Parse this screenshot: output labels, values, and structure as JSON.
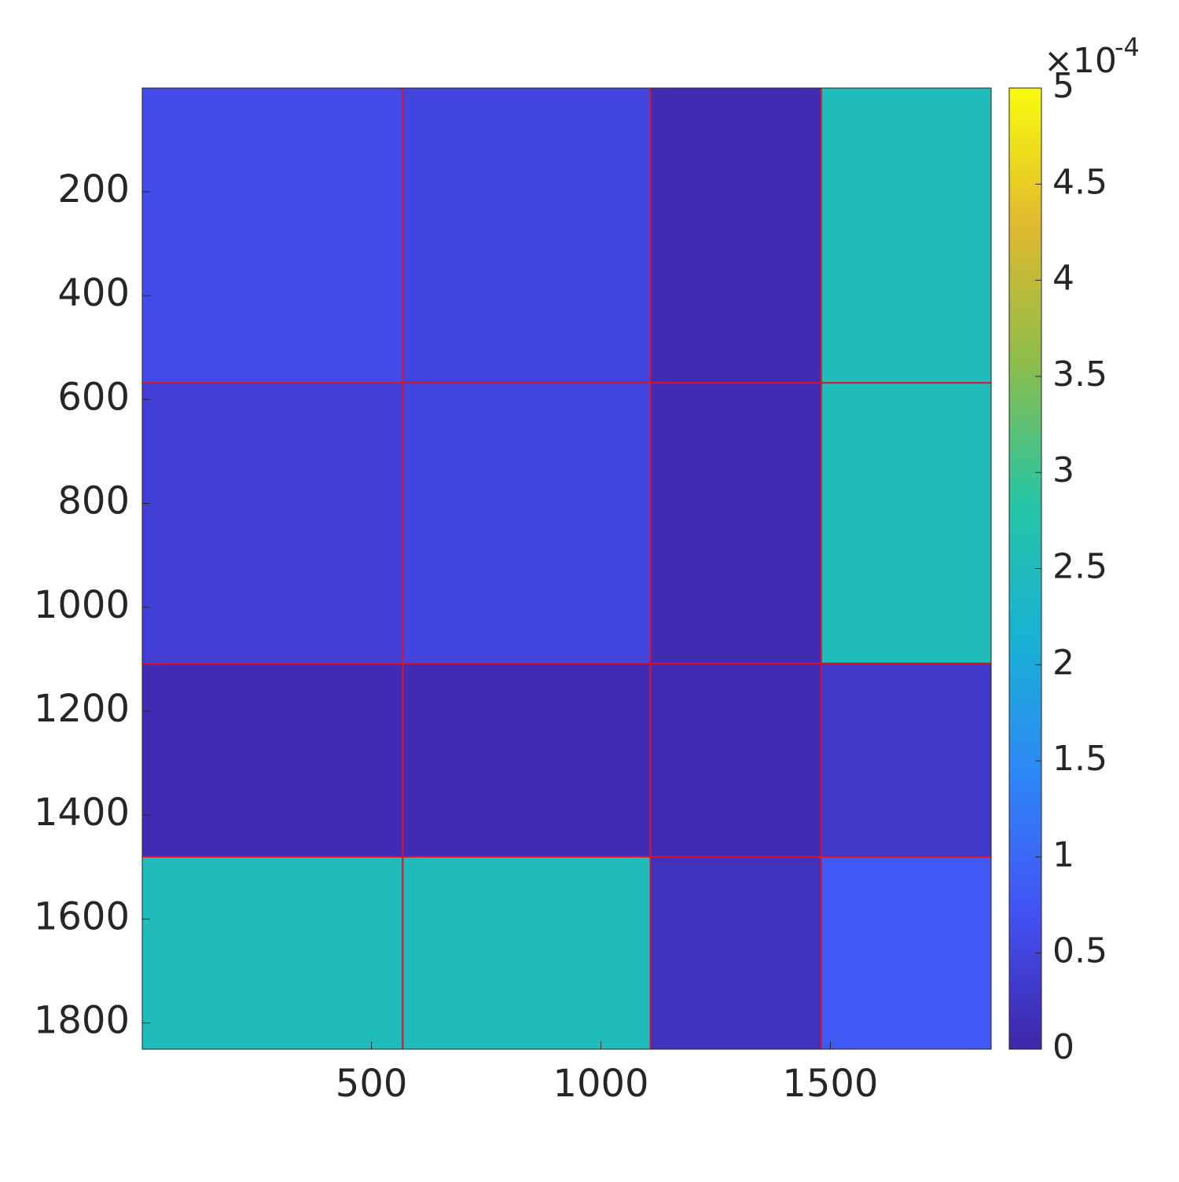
{
  "chart_data": {
    "type": "heatmap",
    "x_edges": [
      0.5,
      568,
      1108,
      1480,
      1850.5
    ],
    "y_edges": [
      0.5,
      568,
      1108,
      1480,
      1850.5
    ],
    "values": [
      [
        0.6,
        0.5,
        0.1,
        2.5
      ],
      [
        0.4,
        0.5,
        0.1,
        2.5
      ],
      [
        0.1,
        0.1,
        0.1,
        0.3
      ],
      [
        2.5,
        2.5,
        0.2,
        0.8
      ]
    ],
    "xlim": [
      0.5,
      1850.5
    ],
    "ylim": [
      0.5,
      1850.5
    ],
    "xticks": [
      500,
      1000,
      1500
    ],
    "yticks": [
      200,
      400,
      600,
      800,
      1000,
      1200,
      1400,
      1600,
      1800
    ],
    "y_reversed": true,
    "block_line_color": "#e0102a",
    "colormap": [
      "#3e26a8",
      "#4352f4",
      "#2e87f7",
      "#19b2d3",
      "#27c5a3",
      "#8dbd4b",
      "#e0b92f",
      "#f9fb0e"
    ],
    "clim": [
      0,
      5
    ],
    "cticks": [
      0,
      0.5,
      1,
      1.5,
      2,
      2.5,
      3,
      3.5,
      4,
      4.5,
      5
    ],
    "colorbar_multiplier": "×10",
    "colorbar_exponent": "-4"
  }
}
